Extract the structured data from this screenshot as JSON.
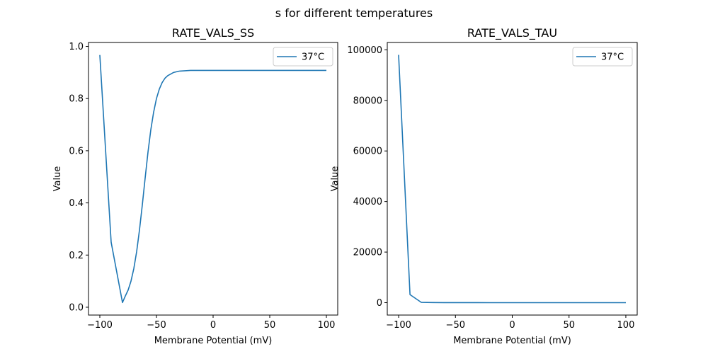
{
  "suptitle": "s for different temperatures",
  "line_color": "#1f77b4",
  "chart_data": [
    {
      "type": "line",
      "title": "RATE_VALS_SS",
      "xlabel": "Membrane Potential (mV)",
      "ylabel": "Value",
      "xlim": [
        -110,
        110
      ],
      "ylim": [
        -0.03,
        1.015
      ],
      "xticks": [
        -100,
        -50,
        0,
        50,
        100
      ],
      "xtick_labels": [
        "−100",
        "−50",
        "0",
        "50",
        "100"
      ],
      "yticks": [
        0,
        0.2,
        0.4,
        0.6,
        0.8,
        1.0
      ],
      "ytick_labels": [
        "0.0",
        "0.2",
        "0.4",
        "0.6",
        "0.8",
        "1.0"
      ],
      "legend": "upper right",
      "series": [
        {
          "name": "37°C",
          "x": [
            -100,
            -90,
            -80,
            -77.5,
            -75,
            -72.5,
            -70,
            -67.5,
            -65,
            -62.5,
            -60,
            -57.5,
            -55,
            -52.5,
            -50,
            -47.5,
            -45,
            -42.5,
            -40,
            -35,
            -30,
            -20,
            -10,
            0,
            10,
            20,
            30,
            40,
            50,
            60,
            70,
            80,
            90,
            100
          ],
          "y": [
            0.967,
            0.249,
            0.018,
            0.043,
            0.066,
            0.1,
            0.148,
            0.213,
            0.296,
            0.392,
            0.495,
            0.594,
            0.68,
            0.748,
            0.8,
            0.836,
            0.861,
            0.878,
            0.888,
            0.9,
            0.905,
            0.908,
            0.908,
            0.908,
            0.908,
            0.908,
            0.908,
            0.908,
            0.908,
            0.908,
            0.908,
            0.908,
            0.908,
            0.908
          ]
        }
      ]
    },
    {
      "type": "line",
      "title": "RATE_VALS_TAU",
      "xlabel": "Membrane Potential (mV)",
      "ylabel": "Value",
      "xlim": [
        -110,
        110
      ],
      "ylim": [
        -4900,
        102900
      ],
      "xticks": [
        -100,
        -50,
        0,
        50,
        100
      ],
      "xtick_labels": [
        "−100",
        "−50",
        "0",
        "50",
        "100"
      ],
      "yticks": [
        0,
        20000,
        40000,
        60000,
        80000,
        100000
      ],
      "ytick_labels": [
        "0",
        "20000",
        "40000",
        "60000",
        "80000",
        "100000"
      ],
      "legend": "upper right",
      "series": [
        {
          "name": "37°C",
          "x": [
            -100,
            -90,
            -80,
            -70,
            -60,
            -50,
            -40,
            -30,
            -20,
            -10,
            0,
            10,
            20,
            30,
            40,
            50,
            60,
            70,
            80,
            90,
            100
          ],
          "y": [
            98000,
            3200,
            100,
            60,
            40,
            30,
            20,
            15,
            12,
            10,
            10,
            10,
            10,
            10,
            10,
            10,
            10,
            10,
            10,
            10,
            10
          ]
        }
      ]
    }
  ]
}
